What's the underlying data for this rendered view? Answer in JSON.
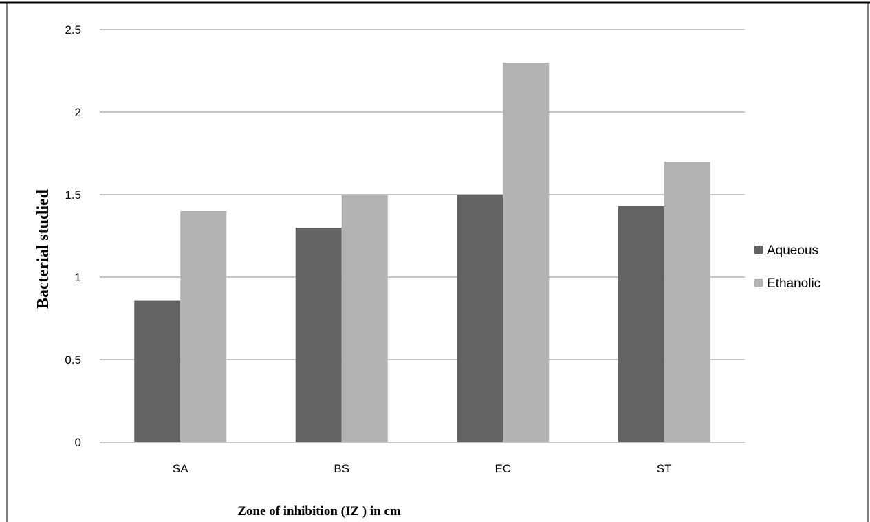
{
  "chart_data": {
    "type": "bar",
    "categories": [
      "SA",
      "BS",
      "EC",
      "ST"
    ],
    "series": [
      {
        "name": "Aqueous",
        "values": [
          0.86,
          1.3,
          1.5,
          1.43
        ],
        "color": "#636363"
      },
      {
        "name": "Ethanolic",
        "values": [
          1.4,
          1.5,
          2.3,
          1.7
        ],
        "color": "#b3b3b3"
      }
    ],
    "yticks": [
      "0",
      "0.5",
      "1",
      "1.5",
      "2",
      "2.5"
    ],
    "ylim": [
      0,
      2.5
    ],
    "xlabel": "Zone of inhibition (IZ ) in cm",
    "ylabel": "Bacterial studied",
    "grid": true,
    "legend": "right"
  },
  "colors": {
    "gridline": "#8c8c8c",
    "frame": "#000000"
  }
}
